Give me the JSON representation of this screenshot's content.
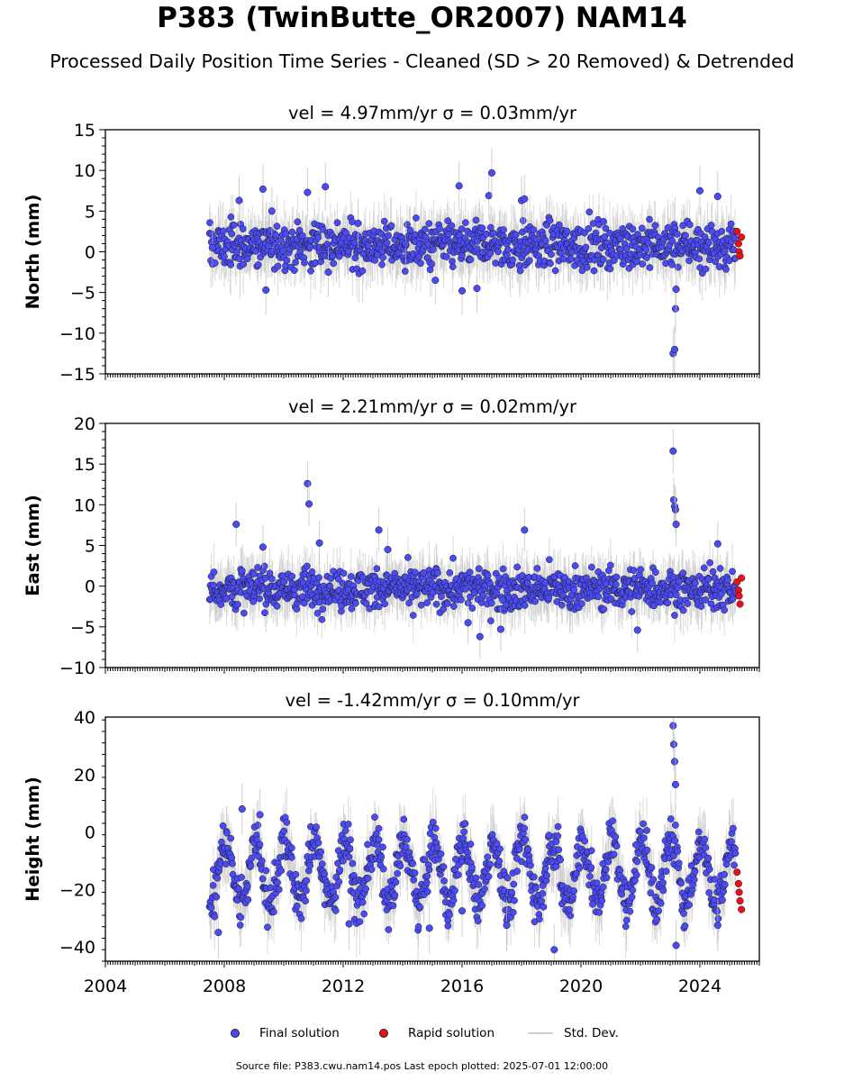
{
  "title": "P383 (TwinButte_OR2007) NAM14",
  "subtitle": "Processed Daily Position Time Series - Cleaned (SD > 20 Removed) & Detrended",
  "legend": {
    "final": "Final solution",
    "rapid": "Rapid solution",
    "std": "Std. Dev."
  },
  "footer": "Source file: P383.cwu.nam14.pos  Last epoch plotted: 2025-07-01 12:00:00",
  "colors": {
    "final": "#4b4bf5",
    "rapid": "#e8111b",
    "std": "#bdbdbd",
    "edge": "#1a1a1a"
  },
  "chart_data": [
    {
      "type": "scatter",
      "title": "vel = 4.97mm/yr   σ = 0.03mm/yr",
      "ylabel": "North (mm)",
      "xlabel": "",
      "xlim": [
        2004,
        2026
      ],
      "ylim": [
        -15,
        15
      ],
      "yticks": [
        -15,
        -10,
        -5,
        0,
        5,
        10,
        15
      ],
      "xticks": [
        2004,
        2008,
        2012,
        2016,
        2020,
        2024
      ],
      "show_xticklabels": false,
      "series": [
        {
          "name": "Final solution",
          "x": [
            2007.6,
            2008.5,
            2009.3,
            2009.4,
            2009.6,
            2010.8,
            2011.4,
            2011.5,
            2012.5,
            2014.1,
            2015.1,
            2015.9,
            2016.0,
            2016.5,
            2016.9,
            2017.0,
            2018.0,
            2018.1,
            2023.1,
            2023.15,
            2023.18,
            2023.2,
            2024.0,
            2024.6
          ],
          "y": [
            0.5,
            6.3,
            7.7,
            -4.7,
            5.0,
            7.3,
            8.0,
            -2.5,
            3.5,
            1.0,
            -3.5,
            8.1,
            -4.8,
            -4.5,
            6.9,
            9.7,
            6.3,
            6.5,
            -12.5,
            -12.0,
            -7.0,
            -4.6,
            7.5,
            6.8
          ]
        },
        {
          "name": "Rapid solution",
          "x": [
            2025.25,
            2025.3,
            2025.32,
            2025.35,
            2025.4
          ],
          "y": [
            2.5,
            1.0,
            0.0,
            -0.5,
            1.8
          ]
        }
      ],
      "band": {
        "x_start": 2007.5,
        "x_end": 2025.2,
        "mean": 0.8,
        "spread": 2.0
      }
    },
    {
      "type": "scatter",
      "title": "vel = 2.21mm/yr   σ = 0.02mm/yr",
      "ylabel": "East (mm)",
      "xlabel": "",
      "xlim": [
        2004,
        2026
      ],
      "ylim": [
        -10,
        20
      ],
      "yticks": [
        -10,
        -5,
        0,
        5,
        10,
        15,
        20
      ],
      "xticks": [
        2004,
        2008,
        2012,
        2016,
        2020,
        2024
      ],
      "show_xticklabels": false,
      "series": [
        {
          "name": "Final solution",
          "x": [
            2008.4,
            2009.3,
            2010.8,
            2010.85,
            2011.2,
            2013.2,
            2013.5,
            2016.2,
            2016.6,
            2017.3,
            2018.1,
            2021.9,
            2023.1,
            2023.12,
            2023.15,
            2023.18,
            2023.2,
            2024.6
          ],
          "y": [
            7.6,
            4.8,
            12.6,
            10.1,
            5.3,
            6.9,
            4.5,
            -4.5,
            -6.2,
            -5.3,
            6.9,
            -5.4,
            16.6,
            10.6,
            9.8,
            9.4,
            7.6,
            5.2
          ]
        },
        {
          "name": "Rapid solution",
          "x": [
            2025.25,
            2025.3,
            2025.32,
            2025.35,
            2025.4
          ],
          "y": [
            0.5,
            -0.5,
            -1.2,
            -2.2,
            1.0
          ]
        }
      ],
      "band": {
        "x_start": 2007.5,
        "x_end": 2025.2,
        "mean": -0.3,
        "spread": 1.8
      }
    },
    {
      "type": "scatter",
      "title": "vel = -1.42mm/yr   σ = 0.10mm/yr",
      "ylabel": "Height (mm)",
      "xlabel": "",
      "xlim": [
        2004,
        2026
      ],
      "ylim": [
        -45,
        40
      ],
      "yticks": [
        -40,
        -20,
        0,
        20,
        40
      ],
      "xticks": [
        2004,
        2008,
        2012,
        2016,
        2020,
        2024
      ],
      "xticklabels": [
        "2004",
        "2008",
        "2012",
        "2016",
        "2020",
        "2024"
      ],
      "show_xticklabels": true,
      "series": [
        {
          "name": "Final solution",
          "x": [
            2007.8,
            2008.6,
            2009.2,
            2012.2,
            2014.9,
            2016.0,
            2017.5,
            2019.1,
            2023.1,
            2023.12,
            2023.15,
            2023.18,
            2023.2,
            2024.6
          ],
          "y": [
            -35.0,
            8.0,
            6.0,
            -32.0,
            -33.5,
            -27.5,
            -32.5,
            -41.0,
            37.0,
            30.5,
            24.5,
            16.5,
            -39.5,
            -32.5
          ]
        },
        {
          "name": "Rapid solution",
          "x": [
            2025.25,
            2025.3,
            2025.32,
            2025.35,
            2025.4
          ],
          "y": [
            -14.0,
            -18.0,
            -21.0,
            -24.0,
            -27.0
          ]
        }
      ],
      "band": {
        "x_start": 2007.5,
        "x_end": 2025.2,
        "mean": -14.0,
        "spread": 6.0,
        "seasonal": 11.0
      }
    }
  ]
}
